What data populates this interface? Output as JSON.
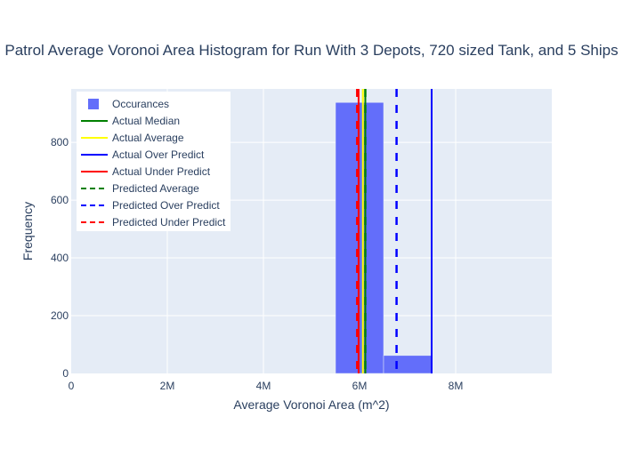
{
  "chart_data": {
    "type": "bar",
    "title": "Patrol Average Voronoi Area Histogram for Run With 3 Depots, 720 sized Tank, and 5 Ships",
    "xlabel": "Average Voronoi Area (m^2)",
    "ylabel": "Frequency",
    "xlim": [
      0,
      10000000
    ],
    "ylim": [
      0,
      985
    ],
    "x_ticks": [
      {
        "value": 0,
        "label": "0"
      },
      {
        "value": 2000000,
        "label": "2M"
      },
      {
        "value": 4000000,
        "label": "4M"
      },
      {
        "value": 6000000,
        "label": "6M"
      },
      {
        "value": 8000000,
        "label": "8M"
      }
    ],
    "y_ticks": [
      {
        "value": 0,
        "label": "0"
      },
      {
        "value": 200,
        "label": "200"
      },
      {
        "value": 400,
        "label": "400"
      },
      {
        "value": 600,
        "label": "600"
      },
      {
        "value": 800,
        "label": "800"
      }
    ],
    "bins": [
      {
        "x0": 5500000,
        "x1": 6500000,
        "count": 938
      },
      {
        "x0": 6500000,
        "x1": 7500000,
        "count": 62
      }
    ],
    "lines": [
      {
        "name": "Actual Median",
        "x": 6120000,
        "color": "#008000",
        "dash": "solid"
      },
      {
        "name": "Actual Average",
        "x": 6070000,
        "color": "#ffff00",
        "dash": "solid"
      },
      {
        "name": "Actual Over Predict",
        "x": 7500000,
        "color": "#0000ff",
        "dash": "solid"
      },
      {
        "name": "Actual Under Predict",
        "x": 5980000,
        "color": "#ff0000",
        "dash": "solid"
      },
      {
        "name": "Predicted Average",
        "x": 6120000,
        "color": "#008000",
        "dash": "dash"
      },
      {
        "name": "Predicted Over Predict",
        "x": 6770000,
        "color": "#0000ff",
        "dash": "dash"
      },
      {
        "name": "Predicted Under Predict",
        "x": 5950000,
        "color": "#ff0000",
        "dash": "dash"
      }
    ],
    "legend": {
      "position": "top-left",
      "items": [
        {
          "label": "Occurances",
          "kind": "box",
          "color": "#636efa"
        },
        {
          "label": "Actual Median",
          "kind": "line",
          "color": "#008000",
          "dash": "solid"
        },
        {
          "label": "Actual Average",
          "kind": "line",
          "color": "#ffff00",
          "dash": "solid"
        },
        {
          "label": "Actual Over Predict",
          "kind": "line",
          "color": "#0000ff",
          "dash": "solid"
        },
        {
          "label": "Actual Under Predict",
          "kind": "line",
          "color": "#ff0000",
          "dash": "solid"
        },
        {
          "label": "Predicted Average",
          "kind": "line",
          "color": "#008000",
          "dash": "dash"
        },
        {
          "label": "Predicted Over Predict",
          "kind": "line",
          "color": "#0000ff",
          "dash": "dash"
        },
        {
          "label": "Predicted Under Predict",
          "kind": "line",
          "color": "#ff0000",
          "dash": "dash"
        }
      ]
    },
    "colors": {
      "bar": "#636efa",
      "plot_bg": "#e5ecf6",
      "grid": "#ffffff",
      "text": "#2a3f5f",
      "legend_bg": "#ffffff"
    }
  }
}
